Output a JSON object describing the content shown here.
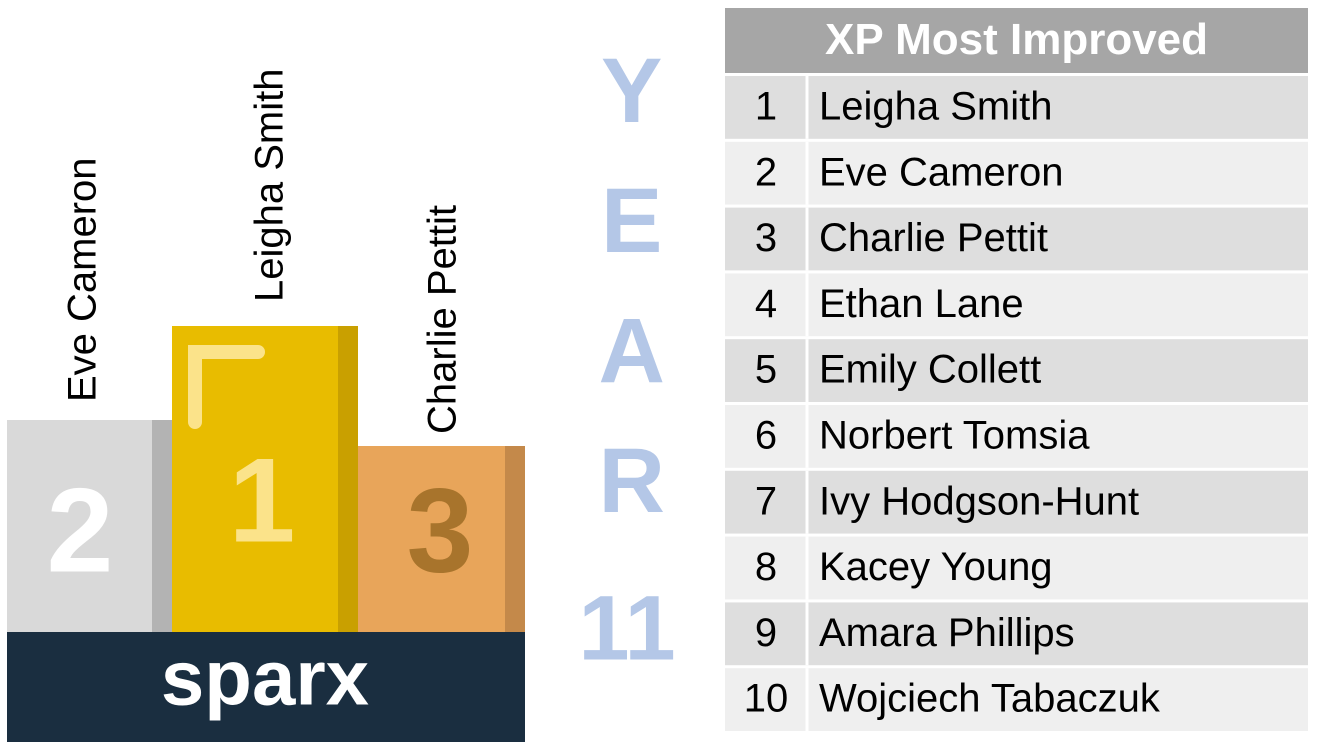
{
  "podium": [
    {
      "name": "Eve Cameron",
      "place": 2
    },
    {
      "name": "Leigha Smith",
      "place": 1
    },
    {
      "name": "Charlie Pettit",
      "place": 3
    }
  ],
  "logo": "sparx",
  "year_label": {
    "word": "YEAR",
    "number": "11"
  },
  "table": {
    "title": "XP Most Improved",
    "rows": [
      [
        1,
        "Leigha Smith"
      ],
      [
        2,
        "Eve Cameron"
      ],
      [
        3,
        "Charlie Pettit"
      ],
      [
        4,
        "Ethan Lane"
      ],
      [
        5,
        "Emily Collett"
      ],
      [
        6,
        "Norbert Tomsia"
      ],
      [
        7,
        "Ivy Hodgson-Hunt"
      ],
      [
        8,
        "Kacey Young"
      ],
      [
        9,
        "Amara Phillips"
      ],
      [
        10,
        "Wojciech Tabaczuk"
      ]
    ]
  }
}
